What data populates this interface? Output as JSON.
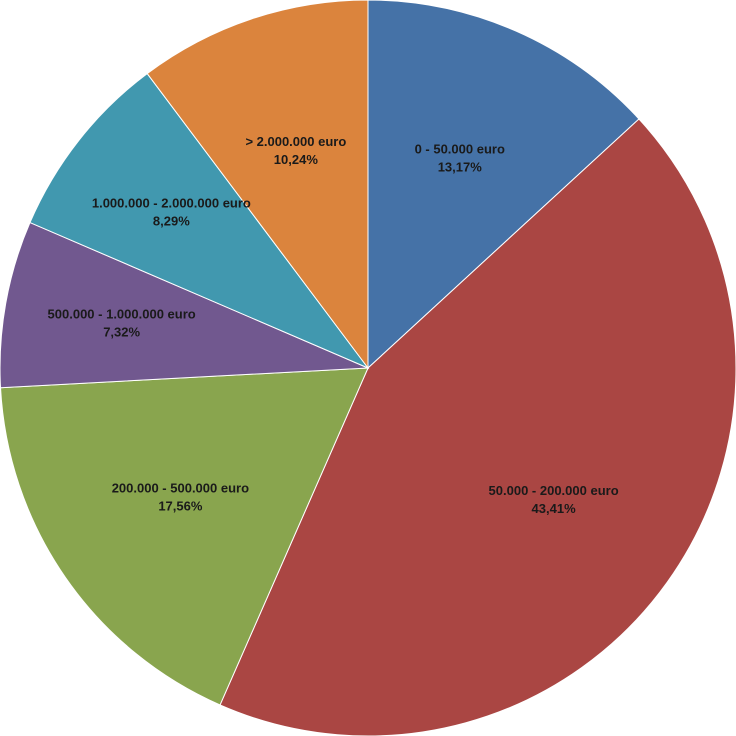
{
  "chart_data": {
    "type": "pie",
    "categories": [
      "0 - 50.000 euro",
      "50.000 - 200.000 euro",
      "200.000 - 500.000 euro",
      "500.000 - 1.000.000 euro",
      "1.000.000 - 2.000.000 euro",
      "> 2.000.000 euro"
    ],
    "values": [
      13.17,
      43.41,
      17.56,
      7.32,
      8.29,
      10.24
    ],
    "value_labels": [
      "13,17%",
      "43,41%",
      "17,56%",
      "7,32%",
      "8,29%",
      "10,24%"
    ],
    "colors": [
      "#4572a7",
      "#aa4643",
      "#89a54e",
      "#71588f",
      "#4198af",
      "#db843d"
    ]
  }
}
